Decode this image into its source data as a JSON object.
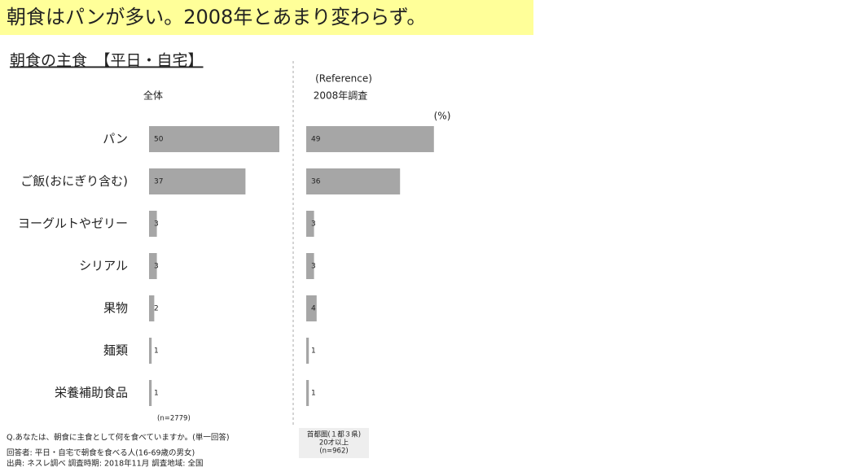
{
  "header": {
    "title": "朝食はパンが多い。2008年とあまり変わらず。",
    "subtitle": "朝食の主食　【平日・自宅】"
  },
  "chart_data": [
    {
      "type": "hbar",
      "title": "全体",
      "categories": [
        "パン",
        "ご飯(おにぎり含む)",
        "ヨーグルトやゼリー",
        "シリアル",
        "果物",
        "麺類",
        "栄養補助食品"
      ],
      "values": [
        50,
        37,
        3,
        3,
        2,
        1,
        1
      ],
      "color": "#a6a6a6",
      "note": [
        "(n=2779)"
      ]
    },
    {
      "type": "hbar",
      "subtitle": "(Reference)",
      "title": "2008年調査",
      "unit": "(%)",
      "values": [
        49,
        36,
        3,
        3,
        4,
        1,
        1
      ],
      "color": "#a6a6a6",
      "note": [
        "首都圏(１都３県)",
        "20才以上",
        "(n=962)"
      ]
    }
  ],
  "footnotes": [
    "Q.あなたは、朝食に主食として何を食べていますか。(単一回答)",
    "回答者:  平日・自宅で朝食を食べる人(16-69歳の男女)",
    "出典:  ネスレ調べ   調査時期:  2018年11月   調査地域:  全国"
  ]
}
